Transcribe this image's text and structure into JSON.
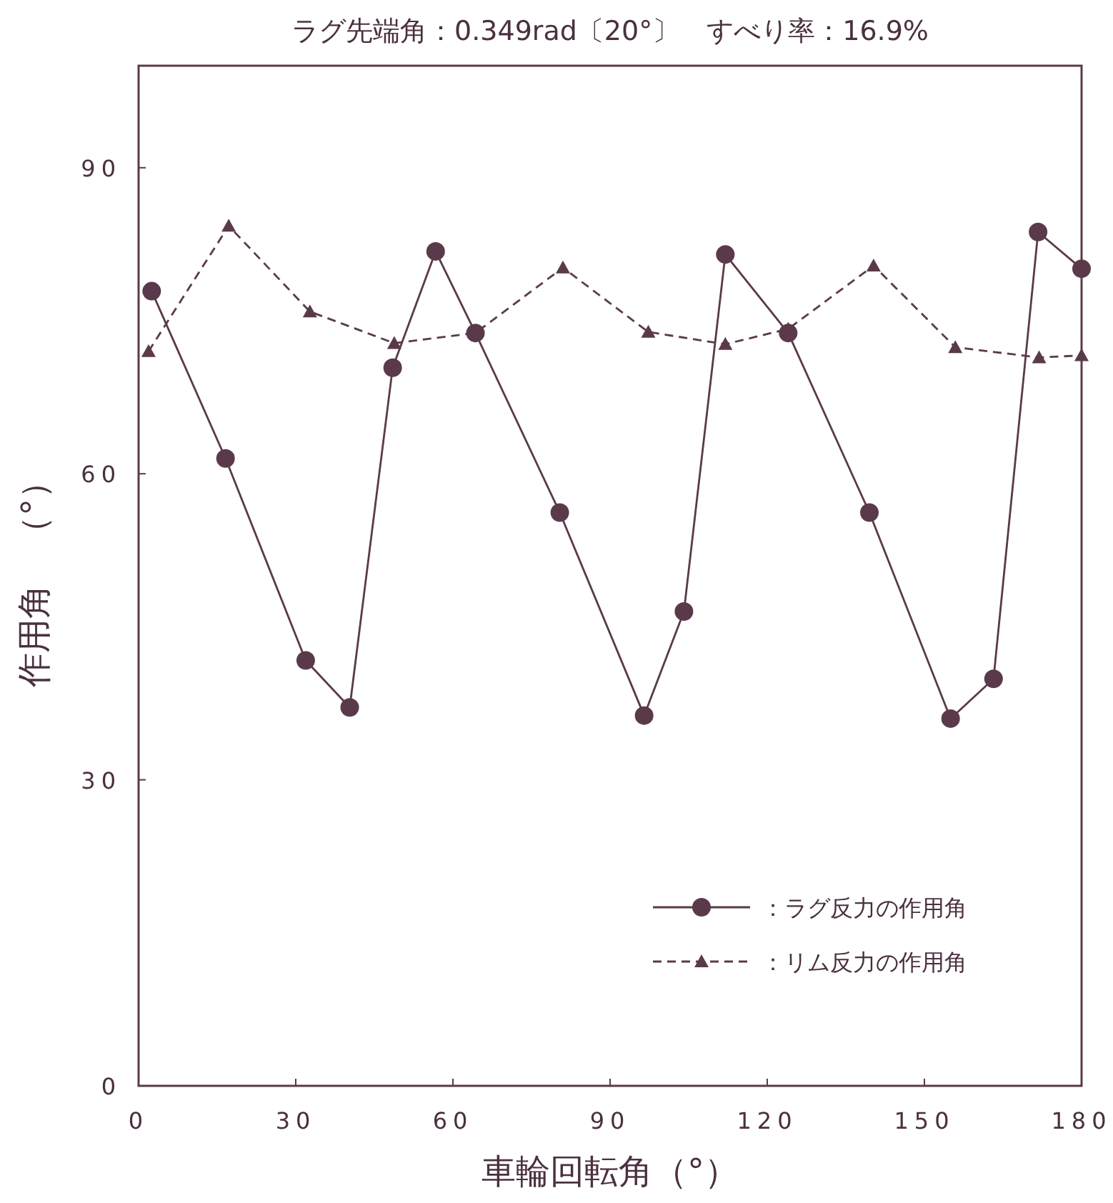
{
  "chart_data": {
    "type": "line",
    "title": "ラグ先端角：0.349rad〔20°〕　すべり率：16.9%",
    "xlabel": "車輪回転角（°）",
    "ylabel": "作用角　（°）",
    "xlim": [
      0,
      180
    ],
    "ylim": [
      0,
      100
    ],
    "xticks": [
      0,
      30,
      60,
      90,
      120,
      150,
      180
    ],
    "yticks": [
      0,
      30,
      60,
      90
    ],
    "legend": "bottom right",
    "series": [
      {
        "name": "：ラグ反力の作用角",
        "color": "#5a3a4a",
        "marker": "circle",
        "line_style": "solid",
        "x": [
          2.5,
          16.6,
          31.9,
          40.3,
          48.5,
          56.7,
          64.3,
          80.4,
          96.5,
          104.1,
          112,
          124,
          139.5,
          155,
          163.2,
          171.7,
          180
        ],
        "values": [
          77.9,
          61.5,
          41.7,
          37.1,
          70.4,
          81.8,
          73.8,
          56.2,
          36.3,
          46.5,
          81.5,
          73.8,
          56.2,
          36,
          39.9,
          83.7,
          80.1
        ]
      },
      {
        "name": "：リム反力の作用角",
        "color": "#5a3a4a",
        "marker": "triangle",
        "line_style": "dashed",
        "x": [
          1.9,
          17.2,
          32.7,
          48.8,
          64.3,
          81,
          97.3,
          112,
          124,
          140.3,
          155.9,
          171.9,
          180
        ],
        "values": [
          72,
          84.3,
          75.9,
          72.8,
          73.8,
          80.2,
          73.9,
          72.7,
          74.2,
          80.4,
          72.4,
          71.4,
          71.6
        ]
      }
    ]
  }
}
